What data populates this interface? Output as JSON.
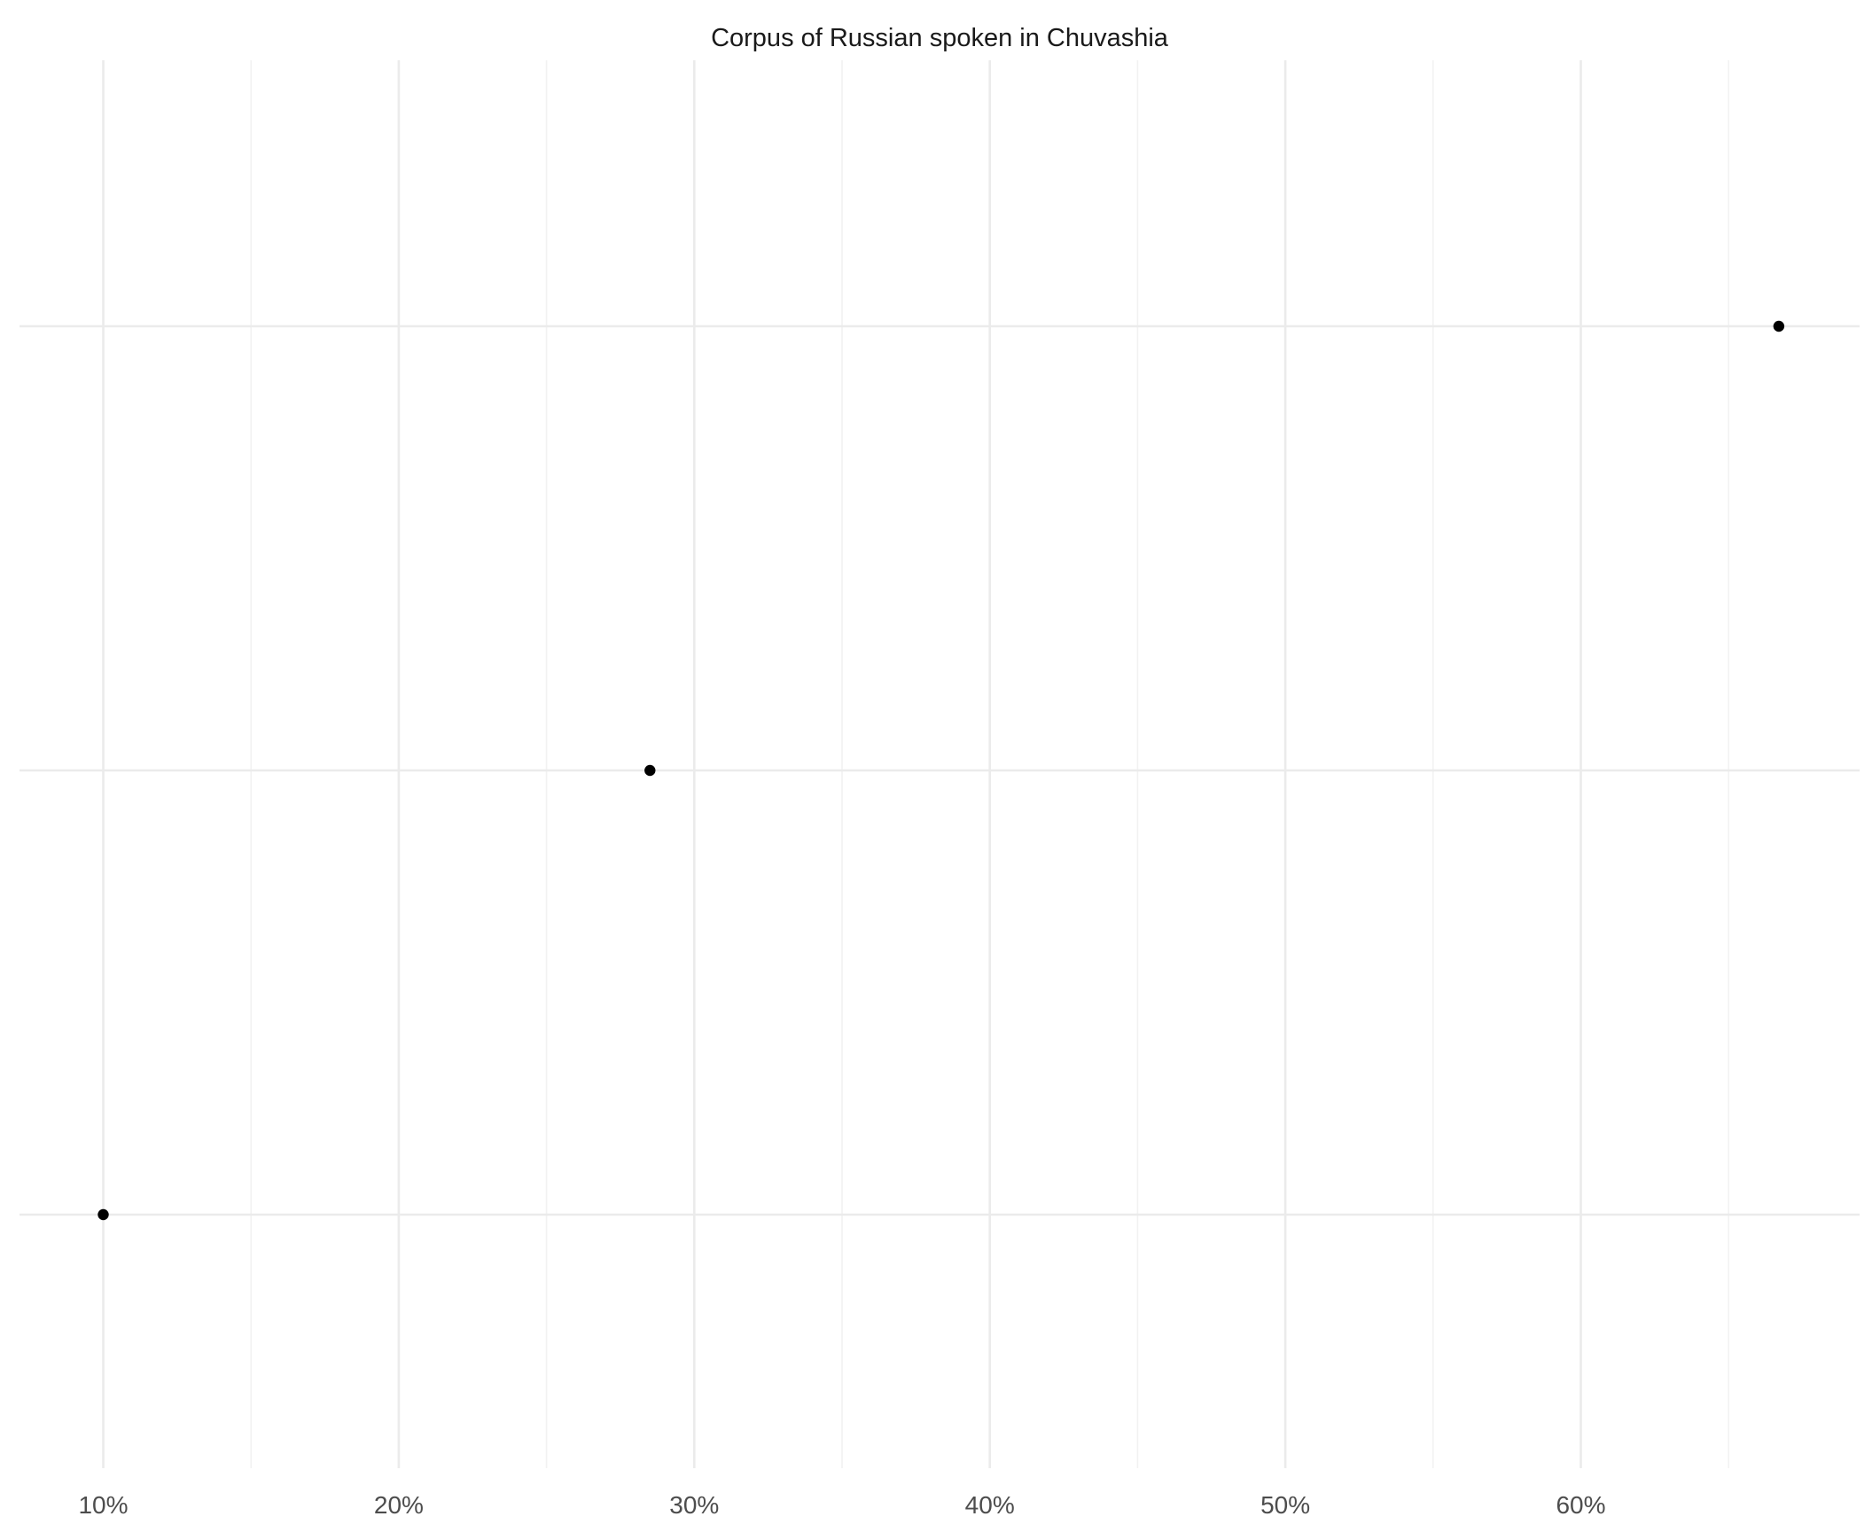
{
  "chart_data": {
    "type": "scatter",
    "title": "Corpus of Russian spoken in Chuvashia",
    "xlabel": "",
    "ylabel": "",
    "x_ticks": [
      {
        "value": 10,
        "label": "10%"
      },
      {
        "value": 20,
        "label": "20%"
      },
      {
        "value": 30,
        "label": "30%"
      },
      {
        "value": 40,
        "label": "40%"
      },
      {
        "value": 50,
        "label": "50%"
      },
      {
        "value": 60,
        "label": "60%"
      }
    ],
    "x_minor_ticks": [
      15,
      25,
      35,
      45,
      55,
      65
    ],
    "xlim": [
      7.2,
      69.4
    ],
    "y_levels": 3,
    "x_unit": "percent",
    "points": [
      {
        "x": 10.0,
        "y": 1
      },
      {
        "x": 28.5,
        "y": 2
      },
      {
        "x": 66.7,
        "y": 3
      }
    ],
    "grid": true,
    "legend": "none",
    "colors": {
      "point": "#000000",
      "grid_major": "#ebebeb",
      "grid_minor": "#f2f2f2",
      "text": "#1a1a1a",
      "tick_text": "#4d4d4d"
    }
  }
}
